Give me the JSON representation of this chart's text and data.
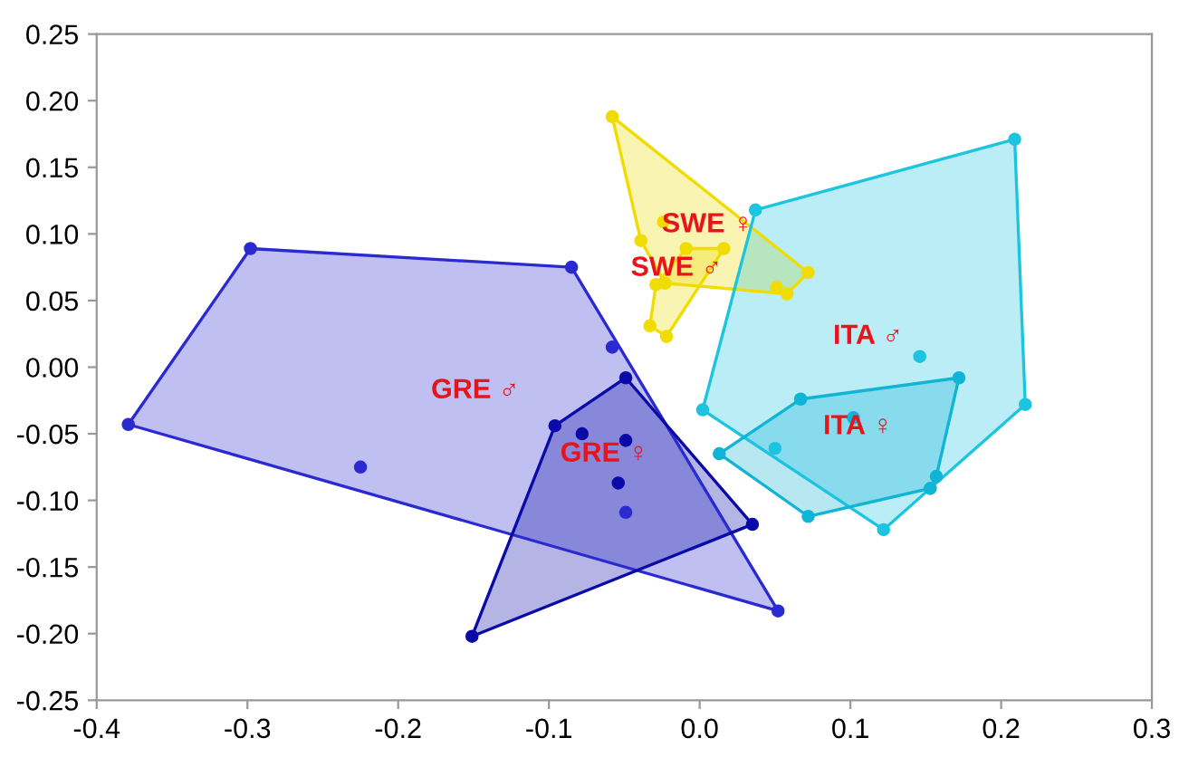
{
  "chart_data": {
    "type": "scatter",
    "xlim": [
      -0.4,
      0.3
    ],
    "ylim": [
      -0.25,
      0.25
    ],
    "xticks": [
      {
        "value": -0.4,
        "label": "-0.4"
      },
      {
        "value": -0.3,
        "label": "-0.3"
      },
      {
        "value": -0.2,
        "label": "-0.2"
      },
      {
        "value": -0.1,
        "label": "-0.1"
      },
      {
        "value": 0.0,
        "label": "0.0"
      },
      {
        "value": 0.1,
        "label": "0.1"
      },
      {
        "value": 0.2,
        "label": "0.2"
      },
      {
        "value": 0.3,
        "label": "0.3"
      }
    ],
    "yticks": [
      {
        "value": -0.25,
        "label": "-0.25"
      },
      {
        "value": -0.2,
        "label": "-0.20"
      },
      {
        "value": -0.15,
        "label": "-0.15"
      },
      {
        "value": -0.1,
        "label": "-0.10"
      },
      {
        "value": -0.05,
        "label": "-0.05"
      },
      {
        "value": 0.0,
        "label": "0.00"
      },
      {
        "value": 0.05,
        "label": "0.05"
      },
      {
        "value": 0.1,
        "label": "0.10"
      },
      {
        "value": 0.15,
        "label": "0.15"
      },
      {
        "value": 0.2,
        "label": "0.20"
      },
      {
        "value": 0.25,
        "label": "0.25"
      }
    ],
    "grid": false,
    "marker": "circle",
    "series": [
      {
        "color": "#2a2ad0",
        "x": [
          -0.379,
          -0.298,
          -0.085,
          0.052,
          -0.225,
          -0.058,
          -0.049
        ],
        "values": [
          -0.043,
          0.089,
          0.075,
          -0.183,
          -0.075,
          0.015,
          -0.109
        ]
      },
      {
        "color": "#0a0aa8",
        "x": [
          -0.151,
          0.035,
          -0.049,
          -0.096,
          -0.078,
          -0.049,
          -0.054
        ],
        "values": [
          -0.202,
          -0.118,
          -0.008,
          -0.044,
          -0.05,
          -0.055,
          -0.087
        ]
      },
      {
        "color": "#f0dc00",
        "x": [
          -0.058,
          -0.039,
          -0.023,
          0.072,
          0.058,
          0.051,
          -0.024
        ],
        "values": [
          0.188,
          0.095,
          0.063,
          0.071,
          0.055,
          0.06,
          0.109
        ]
      },
      {
        "color": "#f0dc00",
        "x": [
          -0.009,
          0.016,
          -0.022,
          -0.033,
          -0.029
        ],
        "values": [
          0.089,
          0.089,
          0.023,
          0.031,
          0.062
        ]
      },
      {
        "color": "#1cc4e0",
        "x": [
          0.209,
          0.216,
          0.122,
          0.002,
          0.037,
          0.146,
          0.05
        ],
        "values": [
          0.171,
          -0.028,
          -0.122,
          -0.032,
          0.118,
          0.008,
          -0.061
        ]
      },
      {
        "color": "#10b4d4",
        "x": [
          0.172,
          0.157,
          0.153,
          0.072,
          0.013,
          0.067,
          0.102
        ],
        "values": [
          -0.008,
          -0.082,
          -0.091,
          -0.112,
          -0.065,
          -0.024,
          -0.038
        ]
      }
    ],
    "annotations": [
      "GRE ♂",
      "GRE ♀",
      "SWE ♀",
      "SWE ♂",
      "ITA ♂",
      "ITA ♀"
    ]
  }
}
